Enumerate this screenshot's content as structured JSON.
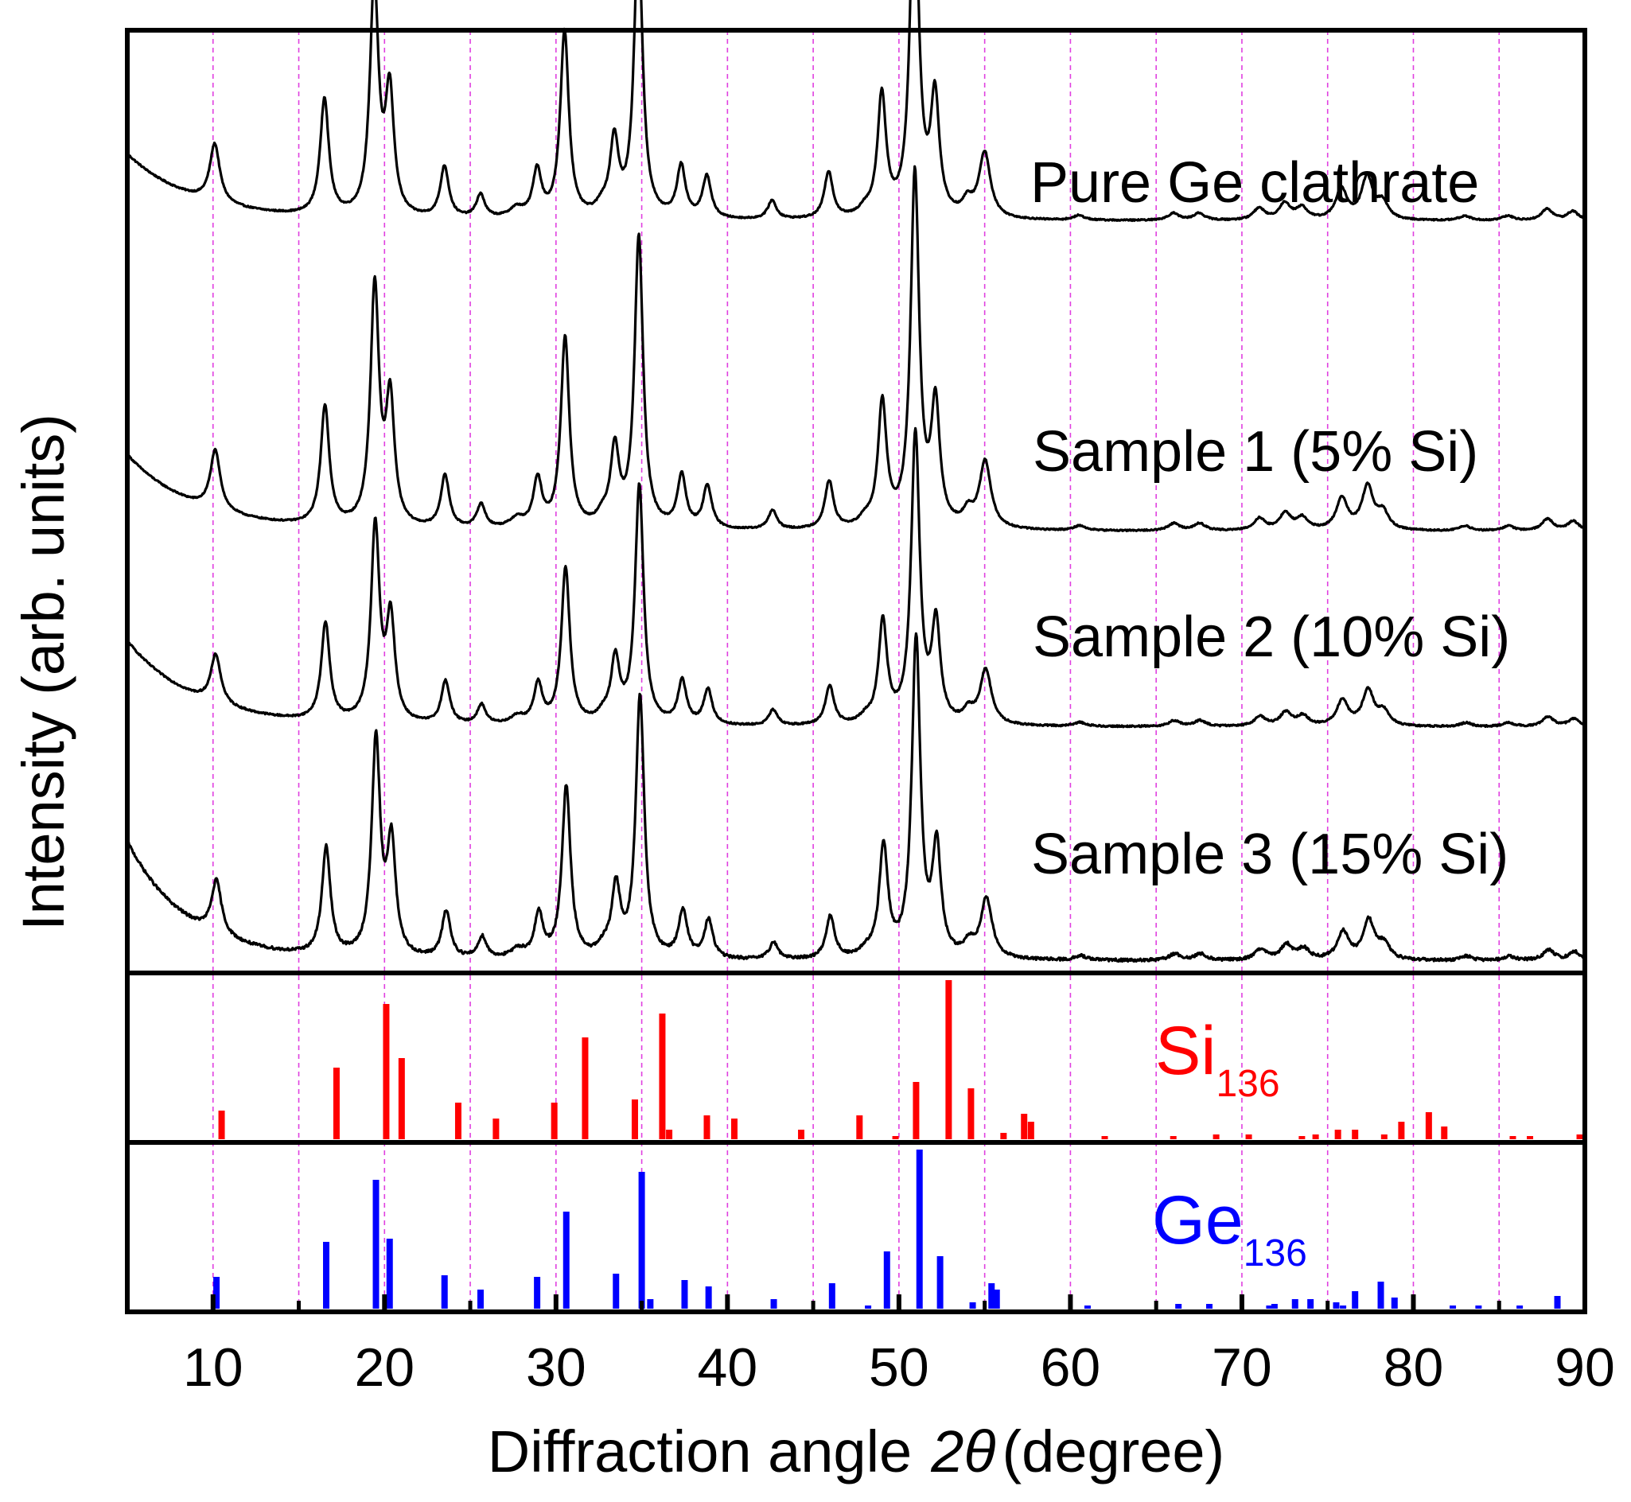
{
  "chart_data": {
    "type": "line",
    "title": "",
    "xlabel_prefix": "Diffraction angle",
    "xlabel_symbol": "2θ",
    "xlabel_suffix": "(degree)",
    "ylabel": "Intensity (arb. units)",
    "xlim": [
      5,
      90
    ],
    "xticks": [
      10,
      20,
      30,
      40,
      50,
      60,
      70,
      80,
      90
    ],
    "gridlines_x": [
      10,
      15,
      20,
      25,
      30,
      35,
      40,
      45,
      50,
      55,
      60,
      65,
      70,
      75,
      80,
      85
    ],
    "grid_color": "#e040e0",
    "line_color": "#000000",
    "common_peaks": [
      {
        "x": 10.1,
        "h": 0.25,
        "w": 0.35
      },
      {
        "x": 16.5,
        "h": 0.5,
        "w": 0.3
      },
      {
        "x": 19.4,
        "h": 1.0,
        "w": 0.3
      },
      {
        "x": 20.3,
        "h": 0.52,
        "w": 0.3
      },
      {
        "x": 23.5,
        "h": 0.22,
        "w": 0.3
      },
      {
        "x": 25.6,
        "h": 0.1,
        "w": 0.3
      },
      {
        "x": 27.7,
        "h": 0.04,
        "w": 0.5
      },
      {
        "x": 28.9,
        "h": 0.2,
        "w": 0.3
      },
      {
        "x": 30.5,
        "h": 0.8,
        "w": 0.3
      },
      {
        "x": 32.7,
        "h": 0.04,
        "w": 0.4
      },
      {
        "x": 33.4,
        "h": 0.32,
        "w": 0.3
      },
      {
        "x": 34.8,
        "h": 1.22,
        "w": 0.3
      },
      {
        "x": 37.3,
        "h": 0.22,
        "w": 0.3
      },
      {
        "x": 38.8,
        "h": 0.18,
        "w": 0.3
      },
      {
        "x": 42.6,
        "h": 0.08,
        "w": 0.3
      },
      {
        "x": 45.9,
        "h": 0.2,
        "w": 0.3
      },
      {
        "x": 48.0,
        "h": 0.03,
        "w": 0.4
      },
      {
        "x": 49.0,
        "h": 0.52,
        "w": 0.3
      },
      {
        "x": 50.9,
        "h": 1.48,
        "w": 0.3
      },
      {
        "x": 52.1,
        "h": 0.5,
        "w": 0.3
      },
      {
        "x": 54.0,
        "h": 0.06,
        "w": 0.35
      },
      {
        "x": 55.0,
        "h": 0.28,
        "w": 0.4
      },
      {
        "x": 60.5,
        "h": 0.02,
        "w": 0.4
      },
      {
        "x": 66.0,
        "h": 0.03,
        "w": 0.4
      },
      {
        "x": 67.5,
        "h": 0.03,
        "w": 0.4
      },
      {
        "x": 71.0,
        "h": 0.05,
        "w": 0.4
      },
      {
        "x": 72.5,
        "h": 0.07,
        "w": 0.4
      },
      {
        "x": 73.5,
        "h": 0.05,
        "w": 0.4
      },
      {
        "x": 75.8,
        "h": 0.13,
        "w": 0.4
      },
      {
        "x": 77.3,
        "h": 0.18,
        "w": 0.4
      },
      {
        "x": 78.2,
        "h": 0.07,
        "w": 0.4
      },
      {
        "x": 83.0,
        "h": 0.02,
        "w": 0.4
      },
      {
        "x": 85.5,
        "h": 0.02,
        "w": 0.4
      },
      {
        "x": 87.8,
        "h": 0.05,
        "w": 0.4
      },
      {
        "x": 89.3,
        "h": 0.04,
        "w": 0.4
      }
    ],
    "series": [
      {
        "name": "Pure Ge clathrate",
        "label": "Pure Ge clathrate",
        "base": 3.0,
        "bg_amp": 0.28,
        "bg_decay": 4.0,
        "scale": 0.98,
        "shift": 0.0,
        "noise": 0.006
      },
      {
        "name": "Sample 1 (5% Si)",
        "label": "Sample 1 (5% Si)",
        "base": 1.7,
        "bg_amp": 0.32,
        "bg_decay": 4.0,
        "scale": 1.0,
        "shift": 0.03,
        "noise": 0.006
      },
      {
        "name": "Sample 2 (10% Si)",
        "label": "Sample 2 (10% Si)",
        "base": 0.88,
        "bg_amp": 0.36,
        "bg_decay": 4.0,
        "scale": 0.82,
        "shift": 0.06,
        "noise": 0.007
      },
      {
        "name": "Sample 3 (15% Si)",
        "label": "Sample 3 (15% Si)",
        "base": -0.1,
        "bg_amp": 0.5,
        "bg_decay": 3.5,
        "scale": 0.9,
        "shift": 0.1,
        "noise": 0.012
      }
    ],
    "reference_Si136": {
      "label_main": "Si",
      "label_sub": "136",
      "color": "#ff0000",
      "peaks": [
        {
          "x": 10.5,
          "h": 0.18
        },
        {
          "x": 17.2,
          "h": 0.45
        },
        {
          "x": 20.1,
          "h": 0.85
        },
        {
          "x": 21.0,
          "h": 0.51
        },
        {
          "x": 24.3,
          "h": 0.23
        },
        {
          "x": 26.5,
          "h": 0.13
        },
        {
          "x": 29.9,
          "h": 0.23
        },
        {
          "x": 31.7,
          "h": 0.64
        },
        {
          "x": 34.6,
          "h": 0.25
        },
        {
          "x": 36.2,
          "h": 0.79
        },
        {
          "x": 36.6,
          "h": 0.06
        },
        {
          "x": 38.8,
          "h": 0.15
        },
        {
          "x": 40.4,
          "h": 0.13
        },
        {
          "x": 44.3,
          "h": 0.06
        },
        {
          "x": 47.7,
          "h": 0.15
        },
        {
          "x": 49.8,
          "h": 0.02
        },
        {
          "x": 51.0,
          "h": 0.36
        },
        {
          "x": 52.9,
          "h": 1.0
        },
        {
          "x": 54.2,
          "h": 0.32
        },
        {
          "x": 56.1,
          "h": 0.04
        },
        {
          "x": 57.3,
          "h": 0.16
        },
        {
          "x": 57.7,
          "h": 0.11
        },
        {
          "x": 62.0,
          "h": 0.01
        },
        {
          "x": 66.0,
          "h": 0.02
        },
        {
          "x": 68.5,
          "h": 0.03
        },
        {
          "x": 70.4,
          "h": 0.03
        },
        {
          "x": 73.5,
          "h": 0.02
        },
        {
          "x": 74.3,
          "h": 0.03
        },
        {
          "x": 75.6,
          "h": 0.06
        },
        {
          "x": 76.6,
          "h": 0.06
        },
        {
          "x": 78.3,
          "h": 0.03
        },
        {
          "x": 79.3,
          "h": 0.11
        },
        {
          "x": 80.9,
          "h": 0.17
        },
        {
          "x": 81.8,
          "h": 0.08
        },
        {
          "x": 85.8,
          "h": 0.02
        },
        {
          "x": 86.8,
          "h": 0.02
        },
        {
          "x": 89.7,
          "h": 0.03
        }
      ]
    },
    "reference_Ge136": {
      "label_main": "Ge",
      "label_sub": "136",
      "color": "#0000ff",
      "peaks": [
        {
          "x": 10.2,
          "h": 0.2
        },
        {
          "x": 16.6,
          "h": 0.42
        },
        {
          "x": 19.5,
          "h": 0.81
        },
        {
          "x": 20.3,
          "h": 0.44
        },
        {
          "x": 23.5,
          "h": 0.21
        },
        {
          "x": 25.6,
          "h": 0.12
        },
        {
          "x": 28.9,
          "h": 0.2
        },
        {
          "x": 30.6,
          "h": 0.61
        },
        {
          "x": 33.5,
          "h": 0.22
        },
        {
          "x": 35.0,
          "h": 0.86
        },
        {
          "x": 35.5,
          "h": 0.06
        },
        {
          "x": 37.5,
          "h": 0.18
        },
        {
          "x": 38.9,
          "h": 0.14
        },
        {
          "x": 42.7,
          "h": 0.06
        },
        {
          "x": 46.1,
          "h": 0.16
        },
        {
          "x": 48.2,
          "h": 0.02
        },
        {
          "x": 49.3,
          "h": 0.36
        },
        {
          "x": 51.2,
          "h": 1.0
        },
        {
          "x": 52.4,
          "h": 0.33
        },
        {
          "x": 54.3,
          "h": 0.04
        },
        {
          "x": 55.4,
          "h": 0.16
        },
        {
          "x": 55.7,
          "h": 0.12
        },
        {
          "x": 61.0,
          "h": 0.01
        },
        {
          "x": 66.3,
          "h": 0.03
        },
        {
          "x": 68.1,
          "h": 0.03
        },
        {
          "x": 71.6,
          "h": 0.02
        },
        {
          "x": 71.9,
          "h": 0.03
        },
        {
          "x": 73.1,
          "h": 0.06
        },
        {
          "x": 74.0,
          "h": 0.06
        },
        {
          "x": 75.5,
          "h": 0.04
        },
        {
          "x": 75.9,
          "h": 0.02
        },
        {
          "x": 76.6,
          "h": 0.11
        },
        {
          "x": 78.1,
          "h": 0.17
        },
        {
          "x": 78.9,
          "h": 0.07
        },
        {
          "x": 82.3,
          "h": 0.01
        },
        {
          "x": 83.8,
          "h": 0.02
        },
        {
          "x": 86.2,
          "h": 0.02
        },
        {
          "x": 88.4,
          "h": 0.08
        }
      ]
    }
  }
}
